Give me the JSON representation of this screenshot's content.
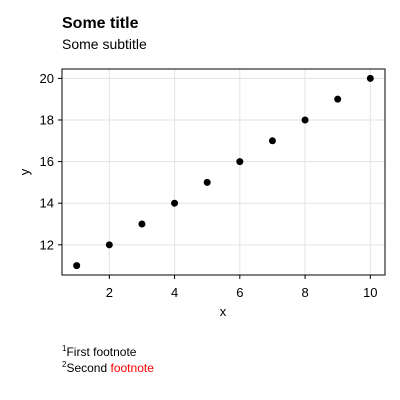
{
  "chart_data": {
    "type": "scatter",
    "title": "Some title",
    "subtitle": "Some subtitle",
    "xlabel": "x",
    "ylabel": "y",
    "xlim": [
      0.55,
      10.45
    ],
    "ylim": [
      10.55,
      20.45
    ],
    "xticks": [
      2,
      4,
      6,
      8,
      10
    ],
    "yticks": [
      12,
      14,
      16,
      18,
      20
    ],
    "grid": true,
    "series": [
      {
        "x": [
          1,
          2,
          3,
          4,
          5,
          6,
          7,
          8,
          9,
          10
        ],
        "y": [
          11,
          12,
          13,
          14,
          15,
          16,
          17,
          18,
          19,
          20
        ],
        "color": "#000000"
      }
    ]
  },
  "footnotes": [
    {
      "marker": "1",
      "parts": [
        {
          "text": "First footnote",
          "color": "#000000"
        }
      ]
    },
    {
      "marker": "2",
      "parts": [
        {
          "text": "Second ",
          "color": "#000000"
        },
        {
          "text": "footnote",
          "color": "#ff0000"
        }
      ]
    }
  ]
}
